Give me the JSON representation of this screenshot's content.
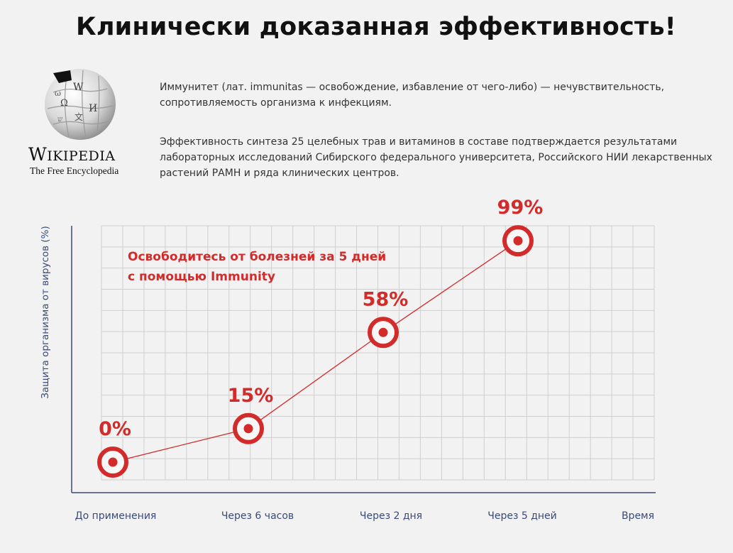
{
  "header": {
    "title": "Клинически доказанная эффективность!"
  },
  "logo": {
    "wordmark_big": "W",
    "wordmark_rest": "IKIPEDIA",
    "tagline": "The Free Encyclopedia"
  },
  "text": {
    "para1": "Иммунитет (лат. immunitas — освобождение, избавление от чего-либо) — нечувствительность, сопротивляемость организма к инфекциям.",
    "para2": "Эффективность синтеза 25 целебных трав и витаминов в составе подтверждается результатами лабораторных исследований Сибирского федерального университета, Российского НИИ лекарственных растений РАМН и ряда клинических центров."
  },
  "chart_data": {
    "type": "line",
    "categories": [
      "До применения",
      "Через 6 часов",
      "Через 2 дня",
      "Через 5 дней"
    ],
    "values": [
      0,
      15,
      58,
      99
    ],
    "data_labels": [
      "0%",
      "15%",
      "58%",
      "99%"
    ],
    "xlabel": "Время",
    "ylabel": "Защита организма от вирусов (%)",
    "annotation_line1": "Освободитесь от болезней за 5 дней",
    "annotation_line2": "с помощью Immunity",
    "grid": true,
    "colors": {
      "accent": "#d32a2a",
      "axis": "#3a4a7a",
      "grid": "#cfcfcf",
      "axis_text": "#3a4a7a"
    }
  }
}
